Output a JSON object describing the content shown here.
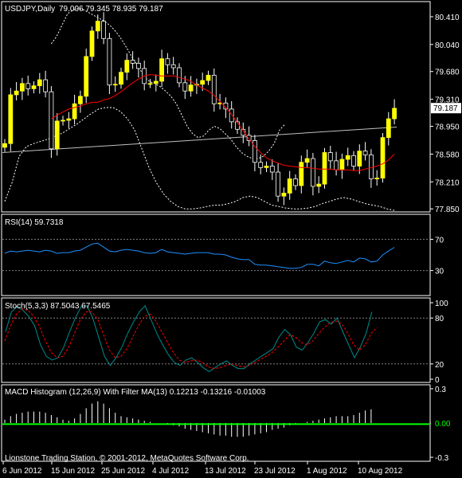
{
  "chart_data": [
    {
      "type": "candlestick",
      "title": "USDJPY,Daily",
      "ohlc_header": "79.006 79.345 78.935 79.187",
      "current_price_label": "79.187",
      "y_ticks": [
        "80.410",
        "80.040",
        "79.680",
        "79.310",
        "78.950",
        "78.580",
        "78.210",
        "77.850"
      ],
      "y_tick_values": [
        80.41,
        80.04,
        79.68,
        79.31,
        78.95,
        78.58,
        78.21,
        77.85
      ],
      "ylim": [
        77.82,
        80.59
      ],
      "x_ticks": [
        "6 Jun 2012",
        "15 Jun 2012",
        "25 Jun 2012",
        "4 Jul 2012",
        "13 Jul 2012",
        "23 Jul 2012",
        "1 Aug 2012",
        "10 Aug 2012"
      ],
      "colors": {
        "bull": "#ffff00",
        "bear": "#000000",
        "outline": "#ffffff",
        "ma_red": "#ff0000",
        "ma_long": "#c0c0c0",
        "bands": "#ffffff"
      },
      "close": [
        78.72,
        79.37,
        79.42,
        79.52,
        79.45,
        79.49,
        79.57,
        79.41,
        78.65,
        79.02,
        79.03,
        79.05,
        79.25,
        79.35,
        79.88,
        80.22,
        80.35,
        80.12,
        79.5,
        79.51,
        79.67,
        79.83,
        79.79,
        79.72,
        79.52,
        79.52,
        79.55,
        79.85,
        79.77,
        79.73,
        79.53,
        79.42,
        79.5,
        79.51,
        79.56,
        79.63,
        79.25,
        79.26,
        79.18,
        79.01,
        78.91,
        78.83,
        78.76,
        78.47,
        78.4,
        78.42,
        78.34,
        78.02,
        78.06,
        78.25,
        78.16,
        78.47,
        78.52,
        78.15,
        78.18,
        78.6,
        78.49,
        78.37,
        78.51,
        78.56,
        78.42,
        78.62,
        78.57,
        78.25,
        78.26,
        78.8,
        79.05,
        79.19
      ],
      "red_ma": [
        79.05,
        79.1,
        79.14,
        79.18,
        79.2,
        79.22,
        79.25,
        79.27,
        79.27,
        79.3,
        79.32,
        79.36,
        79.41,
        79.47,
        79.53,
        79.58,
        79.62,
        79.64,
        79.63,
        79.62,
        79.62,
        79.62,
        79.6,
        79.58,
        79.55,
        79.5,
        79.46,
        79.42,
        79.36,
        79.28,
        79.2,
        79.11,
        79.0,
        78.89,
        78.78,
        78.68,
        78.6,
        78.53,
        78.49,
        78.46,
        78.43,
        78.42,
        78.41,
        78.4,
        78.4,
        78.39,
        78.38,
        78.38,
        78.38,
        78.37,
        78.37,
        78.37,
        78.36,
        78.36,
        78.38,
        78.4,
        78.42,
        78.45,
        78.5,
        78.58
      ],
      "long_ma": [
        78.6,
        78.94
      ],
      "band_upper": [
        80.05,
        80.15,
        80.3,
        80.45,
        80.5,
        80.52,
        80.5,
        80.46,
        80.42,
        80.38,
        80.34,
        80.28,
        80.2,
        80.1,
        79.98,
        79.85,
        79.75,
        79.62,
        79.55,
        79.52,
        79.48,
        79.42,
        79.35,
        79.25,
        79.1,
        78.95,
        78.85,
        78.8,
        78.82,
        78.9,
        78.95,
        78.92,
        78.85,
        78.78,
        78.68,
        78.6,
        78.55,
        78.52,
        78.52,
        78.55,
        78.62,
        78.72,
        78.9,
        78.98
      ],
      "band_lower": [
        77.95,
        78.2,
        78.55,
        78.68,
        78.72,
        78.75,
        78.78,
        78.82,
        78.86,
        78.92,
        78.98,
        79.05,
        79.12,
        79.18,
        79.2,
        79.2,
        79.15,
        79.05,
        78.9,
        78.65,
        78.4,
        78.2,
        78.05,
        77.95,
        77.88,
        77.85,
        77.85,
        77.86,
        77.88,
        77.9,
        77.9,
        77.92,
        77.95,
        78.0,
        78.02,
        78.0,
        77.95,
        77.9,
        77.88,
        77.86,
        77.85,
        77.85,
        77.86,
        77.88,
        77.92,
        77.95,
        77.98,
        78.0,
        77.98,
        77.95,
        77.92,
        77.9,
        77.88,
        77.85,
        77.83
      ]
    },
    {
      "type": "line",
      "title": "RSI(14) 59.7318",
      "y_ticks": [
        "70",
        "30"
      ],
      "ylim": [
        0,
        100
      ],
      "levels": [
        70,
        30
      ],
      "colors": {
        "line": "#1e90ff",
        "level": "#808080"
      },
      "values": [
        52,
        55,
        54,
        55,
        56,
        55,
        54,
        56,
        55,
        52,
        53,
        53,
        55,
        56,
        60,
        64,
        65,
        60,
        55,
        54,
        56,
        57,
        56,
        55,
        53,
        52,
        53,
        57,
        54,
        53,
        52,
        51,
        52,
        53,
        53,
        53,
        51,
        51,
        50,
        47,
        45,
        44,
        44,
        38,
        37,
        37,
        36,
        35,
        34,
        33,
        33,
        34,
        38,
        38,
        36,
        42,
        40,
        39,
        41,
        43,
        41,
        46,
        45,
        41,
        42,
        50,
        55,
        59.7
      ]
    },
    {
      "type": "line",
      "title": "Stoch(5,3,3) 87.5043 67.5465",
      "y_ticks": [
        "100",
        "80",
        "20",
        "0"
      ],
      "ylim": [
        0,
        100
      ],
      "levels": [
        80,
        20
      ],
      "colors": {
        "main": "#008b8b",
        "signal": "#ff0000",
        "level": "#808080"
      },
      "main": [
        62,
        88,
        95,
        90,
        82,
        70,
        45,
        30,
        25,
        28,
        42,
        62,
        80,
        95,
        96,
        80,
        55,
        30,
        18,
        28,
        42,
        60,
        75,
        88,
        96,
        78,
        60,
        45,
        32,
        22,
        18,
        25,
        28,
        22,
        15,
        10,
        15,
        20,
        24,
        18,
        14,
        14,
        20,
        25,
        30,
        35,
        40,
        55,
        65,
        58,
        42,
        38,
        48,
        60,
        75,
        78,
        72,
        80,
        62,
        45,
        28,
        42,
        60,
        88
      ],
      "signal": [
        50,
        70,
        85,
        92,
        90,
        82,
        68,
        50,
        35,
        28,
        30,
        42,
        60,
        78,
        88,
        88,
        78,
        58,
        38,
        28,
        30,
        40,
        55,
        70,
        82,
        85,
        76,
        62,
        48,
        35,
        25,
        22,
        24,
        25,
        22,
        16,
        14,
        15,
        18,
        20,
        18,
        16,
        18,
        22,
        26,
        30,
        35,
        42,
        50,
        58,
        55,
        48,
        45,
        50,
        60,
        68,
        74,
        76,
        72,
        60,
        45,
        38,
        45,
        60,
        67.5
      ]
    },
    {
      "type": "bar",
      "title": "MACD Histogram (12,26,9) With Filter MA(13) 0.12213 -0.13216 -0.01003",
      "y_ticks": [
        "0.3",
        "0.00",
        "-0.3"
      ],
      "ylim": [
        -0.3,
        0.3
      ],
      "colors": {
        "bar": "#ffffff",
        "filter": "#00ff00"
      },
      "values": [
        0.03,
        0.06,
        0.08,
        0.09,
        0.1,
        0.1,
        0.1,
        0.09,
        0.07,
        0.05,
        0.03,
        0.02,
        0.04,
        0.08,
        0.13,
        0.17,
        0.19,
        0.17,
        0.13,
        0.09,
        0.06,
        0.05,
        0.04,
        0.03,
        0.02,
        0.01,
        0.0,
        0.0,
        -0.01,
        -0.02,
        -0.03,
        -0.05,
        -0.06,
        -0.07,
        -0.08,
        -0.09,
        -0.1,
        -0.11,
        -0.11,
        -0.12,
        -0.12,
        -0.12,
        -0.11,
        -0.1,
        -0.09,
        -0.08,
        -0.06,
        -0.05,
        -0.04,
        -0.02,
        -0.01,
        0.0,
        0.01,
        0.02,
        0.03,
        0.04,
        0.05,
        0.06,
        0.06,
        0.06,
        0.07,
        0.09,
        0.11,
        0.12
      ],
      "filter_line": [
        -0.01,
        -0.01
      ]
    }
  ],
  "footer": {
    "copyright": "Lionstone Trading Station, © 2001-2012, MetaQuotes Software Corp."
  }
}
